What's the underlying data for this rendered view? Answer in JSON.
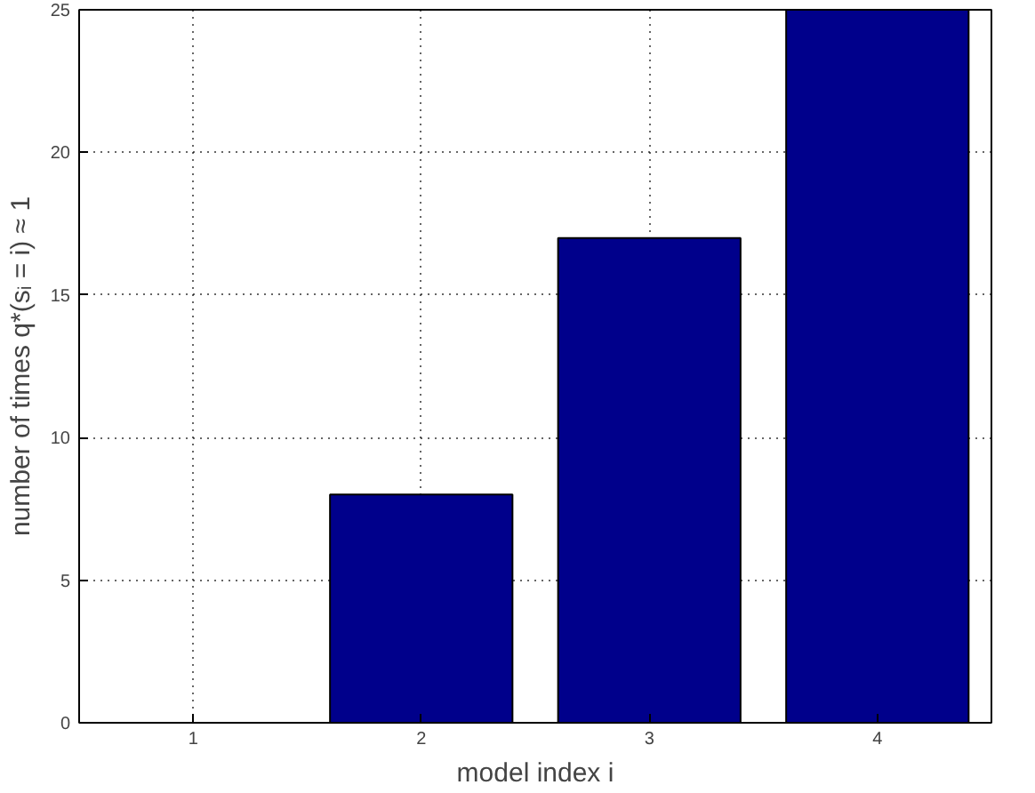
{
  "chart_data": {
    "type": "bar",
    "xlabel": "model index i",
    "ylabel": "number of times q*(sᵢ = i) ≈ 1",
    "x": [
      1,
      2,
      3,
      4
    ],
    "values": [
      0,
      8,
      17,
      25
    ],
    "color": "#00008b",
    "xlim": [
      0.5,
      4.5
    ],
    "xticks": [
      1,
      2,
      3,
      4
    ],
    "ylim": [
      0,
      25
    ],
    "yticks": [
      0,
      5,
      10,
      15,
      20,
      25
    ],
    "grid": true,
    "line_style": "dotted"
  }
}
